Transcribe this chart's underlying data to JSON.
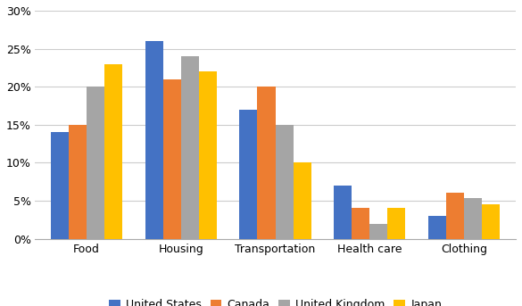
{
  "categories": [
    "Food",
    "Housing",
    "Transportation",
    "Health care",
    "Clothing"
  ],
  "series": {
    "United States": [
      0.14,
      0.26,
      0.17,
      0.07,
      0.03
    ],
    "Canada": [
      0.15,
      0.21,
      0.2,
      0.04,
      0.06
    ],
    "United Kingdom": [
      0.2,
      0.24,
      0.15,
      0.02,
      0.054
    ],
    "Japan": [
      0.23,
      0.22,
      0.1,
      0.04,
      0.045
    ]
  },
  "colors": {
    "United States": "#4472C4",
    "Canada": "#ED7D31",
    "United Kingdom": "#A5A5A5",
    "Japan": "#FFC000"
  },
  "ylim": [
    0,
    0.3
  ],
  "yticks": [
    0,
    0.05,
    0.1,
    0.15,
    0.2,
    0.25,
    0.3
  ],
  "legend_order": [
    "United States",
    "Canada",
    "United Kingdom",
    "Japan"
  ],
  "bar_width": 0.19,
  "figsize": [
    5.85,
    3.43
  ],
  "dpi": 100
}
